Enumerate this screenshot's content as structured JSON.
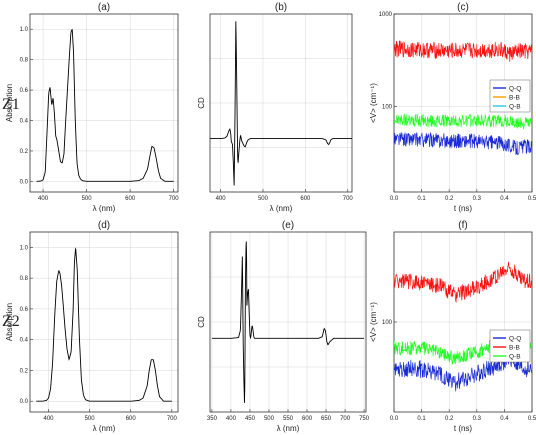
{
  "figure": {
    "row_labels": [
      "Z1",
      "Z2"
    ]
  },
  "chart_data": [
    {
      "id": "a",
      "row": 0,
      "col": 0,
      "type": "line",
      "title": "(a)",
      "xlabel": "λ (nm)",
      "ylabel": "Absorption",
      "xlim": [
        370,
        710
      ],
      "ylim": [
        -0.07,
        1.1
      ],
      "xticks": [
        400,
        500,
        600,
        700
      ],
      "yticks": [
        0.0,
        0.2,
        0.4,
        0.6,
        0.8,
        1.0
      ],
      "ytick_labels": [
        "0.0",
        "0.2",
        "0.4",
        "0.6",
        "0.8",
        "1.0"
      ],
      "grid": true,
      "series": [
        {
          "color": "#000000",
          "x": [
            385,
            395,
            400,
            405,
            410,
            413,
            416,
            420,
            423,
            426,
            429,
            432,
            436,
            440,
            444,
            448,
            452,
            456,
            460,
            464,
            467,
            470,
            474,
            478,
            482,
            486,
            490,
            500,
            520,
            560,
            600,
            620,
            630,
            640,
            645,
            650,
            655,
            660,
            665,
            670,
            680,
            700
          ],
          "y": [
            0.0,
            0.002,
            0.01,
            0.06,
            0.38,
            0.58,
            0.62,
            0.5,
            0.55,
            0.45,
            0.3,
            0.27,
            0.2,
            0.13,
            0.12,
            0.18,
            0.4,
            0.6,
            0.8,
            0.98,
            1.0,
            0.85,
            0.4,
            0.12,
            0.04,
            0.015,
            0.005,
            0.0,
            0.0,
            0.0,
            0.0,
            0.005,
            0.02,
            0.08,
            0.16,
            0.23,
            0.22,
            0.15,
            0.07,
            0.02,
            0.0,
            0.0
          ]
        }
      ]
    },
    {
      "id": "b",
      "row": 0,
      "col": 1,
      "type": "line",
      "title": "(b)",
      "xlabel": "λ (nm)",
      "ylabel": "CD",
      "xlim": [
        375,
        710
      ],
      "ylim": [
        -0.45,
        1.05
      ],
      "xticks": [
        400,
        500,
        600,
        700
      ],
      "yticks": [],
      "ytick_labels": [],
      "grid": true,
      "series": [
        {
          "color": "#000000",
          "x": [
            375,
            400,
            410,
            415,
            418,
            420,
            422,
            424,
            425,
            428,
            430,
            432,
            433,
            434,
            435,
            436,
            438,
            440,
            441,
            443,
            445,
            447,
            450,
            455,
            458,
            462,
            465,
            470,
            480,
            500,
            600,
            640,
            648,
            650,
            652,
            655,
            658,
            660,
            665,
            700,
            710
          ],
          "y": [
            0,
            0,
            0.005,
            0.02,
            0.05,
            0.07,
            0.08,
            0.04,
            -0.02,
            -0.05,
            -0.2,
            -0.4,
            -0.1,
            0.2,
            0.6,
            1.0,
            0.5,
            -0.1,
            -0.22,
            -0.12,
            -0.03,
            0.03,
            -0.02,
            -0.06,
            -0.07,
            -0.03,
            -0.01,
            0,
            0,
            0,
            0,
            0,
            -0.01,
            -0.02,
            -0.04,
            -0.05,
            -0.03,
            -0.01,
            0,
            0,
            0
          ]
        }
      ]
    },
    {
      "id": "c",
      "row": 0,
      "col": 2,
      "type": "line",
      "yscale": "log",
      "title": "(c)",
      "xlabel": "t (ns)",
      "ylabel": "<V> (cm⁻¹)",
      "xlim": [
        0.0,
        0.5
      ],
      "ylim": [
        12,
        1000
      ],
      "xticks": [
        0.0,
        0.1,
        0.2,
        0.3,
        0.4,
        0.5
      ],
      "xtick_labels": [
        "0.0",
        "0.1",
        "0.2",
        "0.3",
        "0.4",
        "0.5"
      ],
      "yticks": [
        100,
        1000
      ],
      "ytick_labels": [
        "100",
        "1000"
      ],
      "grid": true,
      "legend": {
        "position": "right",
        "entries": [
          {
            "name": "Q-Q",
            "color": "#1a2bd6"
          },
          {
            "name": "B-B",
            "color": "#f5a000"
          },
          {
            "name": "Q-B",
            "color": "#2ec8e0"
          }
        ]
      },
      "series": [
        {
          "color": "#ff1010",
          "x": [
            0,
            0.1,
            0.2,
            0.3,
            0.38,
            0.42,
            0.45,
            0.5
          ],
          "y": [
            420,
            410,
            400,
            405,
            415,
            370,
            395,
            390
          ],
          "noise": 0.09
        },
        {
          "color": "#22ff22",
          "x": [
            0,
            0.1,
            0.2,
            0.3,
            0.4,
            0.45,
            0.5
          ],
          "y": [
            72,
            70,
            70,
            71,
            70,
            66,
            68
          ],
          "noise": 0.07
        },
        {
          "color": "#1a2bd6",
          "x": [
            0,
            0.1,
            0.2,
            0.3,
            0.4,
            0.44,
            0.5
          ],
          "y": [
            45,
            44,
            43,
            42,
            40,
            36,
            38
          ],
          "noise": 0.08
        }
      ]
    },
    {
      "id": "d",
      "row": 1,
      "col": 0,
      "type": "line",
      "title": "(d)",
      "xlabel": "λ (nm)",
      "ylabel": "Absorption",
      "xlim": [
        355,
        715
      ],
      "ylim": [
        -0.07,
        1.1
      ],
      "xticks": [
        400,
        500,
        600,
        700
      ],
      "yticks": [
        0.0,
        0.2,
        0.4,
        0.6,
        0.8,
        1.0
      ],
      "ytick_labels": [
        "0.0",
        "0.2",
        "0.4",
        "0.6",
        "0.8",
        "1.0"
      ],
      "grid": true,
      "series": [
        {
          "color": "#000000",
          "x": [
            370,
            385,
            395,
            400,
            405,
            410,
            415,
            420,
            425,
            428,
            432,
            436,
            440,
            445,
            450,
            455,
            460,
            463,
            466,
            470,
            475,
            480,
            485,
            490,
            500,
            520,
            560,
            600,
            620,
            630,
            640,
            645,
            650,
            655,
            660,
            665,
            670,
            680,
            700
          ],
          "y": [
            0.0,
            0.0,
            0.005,
            0.02,
            0.08,
            0.25,
            0.55,
            0.78,
            0.85,
            0.83,
            0.75,
            0.62,
            0.48,
            0.34,
            0.27,
            0.32,
            0.6,
            0.9,
            1.0,
            0.85,
            0.42,
            0.14,
            0.04,
            0.01,
            0.0,
            0.0,
            0.0,
            0.0,
            0.005,
            0.02,
            0.1,
            0.2,
            0.27,
            0.27,
            0.2,
            0.1,
            0.03,
            0.0,
            0.0
          ]
        }
      ]
    },
    {
      "id": "e",
      "row": 1,
      "col": 1,
      "type": "line",
      "title": "(e)",
      "xlabel": "λ (nm)",
      "ylabel": "CD",
      "xlim": [
        345,
        755
      ],
      "ylim": [
        -0.45,
        0.65
      ],
      "xticks": [
        350,
        400,
        450,
        500,
        550,
        600,
        650,
        700,
        750
      ],
      "yticks": [],
      "ytick_labels": [],
      "grid": true,
      "series": [
        {
          "color": "#000000",
          "x": [
            350,
            400,
            420,
            425,
            428,
            430,
            431,
            432,
            434,
            436,
            437,
            438,
            440,
            441,
            442,
            444,
            446,
            448,
            450,
            452,
            454,
            456,
            458,
            460,
            462,
            465,
            470,
            480,
            500,
            630,
            640,
            643,
            645,
            648,
            650,
            652,
            655,
            660,
            670,
            750
          ],
          "y": [
            0,
            0,
            0.005,
            0.05,
            0.3,
            0.5,
            0.3,
            0.0,
            -0.25,
            -0.43,
            -0.1,
            0.3,
            0.62,
            0.55,
            0.2,
            0.28,
            0.3,
            0.15,
            0.02,
            0.0,
            0.05,
            0.08,
            0.05,
            0.01,
            0.0,
            0.0,
            0,
            0,
            0,
            0,
            0.01,
            0.04,
            0.06,
            0.05,
            0.02,
            -0.02,
            -0.04,
            -0.02,
            0,
            0
          ]
        }
      ]
    },
    {
      "id": "f",
      "row": 1,
      "col": 2,
      "type": "line",
      "yscale": "log",
      "title": "(f)",
      "xlabel": "t (ns)",
      "ylabel": "<V> (cm⁻¹)",
      "xlim": [
        0.0,
        0.5
      ],
      "ylim": [
        10,
        1000
      ],
      "xticks": [
        0.0,
        0.1,
        0.2,
        0.3,
        0.4,
        0.5
      ],
      "xtick_labels": [
        "0.0",
        "0.1",
        "0.2",
        "0.3",
        "0.4",
        "0.5"
      ],
      "yticks": [
        100
      ],
      "ytick_labels": [
        "100"
      ],
      "grid": true,
      "legend": {
        "position": "right",
        "entries": [
          {
            "name": "Q-Q",
            "color": "#1a2bd6"
          },
          {
            "name": "B-B",
            "color": "#ff1010"
          },
          {
            "name": "Q-B",
            "color": "#22ff22"
          }
        ]
      },
      "series": [
        {
          "color": "#ff1010",
          "x": [
            0,
            0.1,
            0.17,
            0.22,
            0.3,
            0.38,
            0.42,
            0.46,
            0.5
          ],
          "y": [
            290,
            275,
            250,
            200,
            240,
            330,
            400,
            300,
            280
          ],
          "noise": 0.09
        },
        {
          "color": "#22ff22",
          "x": [
            0,
            0.1,
            0.15,
            0.22,
            0.3,
            0.38,
            0.42,
            0.46,
            0.5
          ],
          "y": [
            52,
            51,
            47,
            40,
            46,
            58,
            72,
            55,
            52
          ],
          "noise": 0.08
        },
        {
          "color": "#1a2bd6",
          "x": [
            0,
            0.1,
            0.15,
            0.22,
            0.3,
            0.38,
            0.42,
            0.46,
            0.5
          ],
          "y": [
            31,
            30,
            27,
            21,
            26,
            34,
            40,
            30,
            30
          ],
          "noise": 0.1
        }
      ]
    }
  ]
}
